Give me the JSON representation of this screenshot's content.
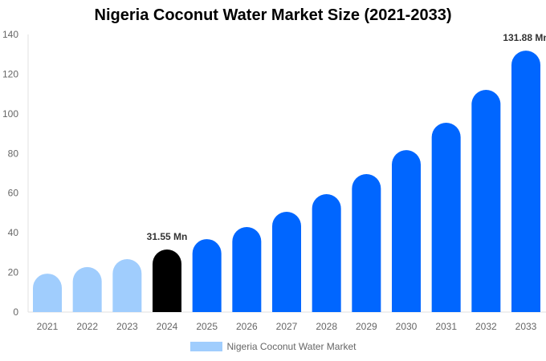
{
  "chart_data": {
    "type": "bar",
    "title": "Nigeria Coconut Water Market Size (2021-2033)",
    "categories": [
      "2021",
      "2022",
      "2023",
      "2024",
      "2025",
      "2026",
      "2027",
      "2028",
      "2029",
      "2030",
      "2031",
      "2032",
      "2033"
    ],
    "series": [
      {
        "name": "Nigeria Coconut Water Market",
        "values": [
          19.4,
          22.7,
          26.7,
          31.55,
          36.8,
          42.9,
          50.6,
          59.5,
          69.6,
          81.7,
          95.5,
          112.1,
          131.88
        ]
      }
    ],
    "bar_colors": [
      "#a0cdfd",
      "#a0cdfd",
      "#a0cdfd",
      "#000000",
      "#0066ff",
      "#0066ff",
      "#0066ff",
      "#0066ff",
      "#0066ff",
      "#0066ff",
      "#0066ff",
      "#0066ff",
      "#0066ff"
    ],
    "data_labels": [
      {
        "index": 3,
        "text": "31.55 Mn"
      },
      {
        "index": 12,
        "text": "131.88 Mn"
      }
    ],
    "ylim": [
      0,
      140
    ],
    "yticks": [
      0,
      20,
      40,
      60,
      80,
      100,
      120,
      140
    ],
    "xlabel": "",
    "ylabel": "",
    "grid": false,
    "legend": {
      "position": "bottom",
      "label": "Nigeria Coconut Water Market",
      "color": "#a0cdfd"
    }
  }
}
